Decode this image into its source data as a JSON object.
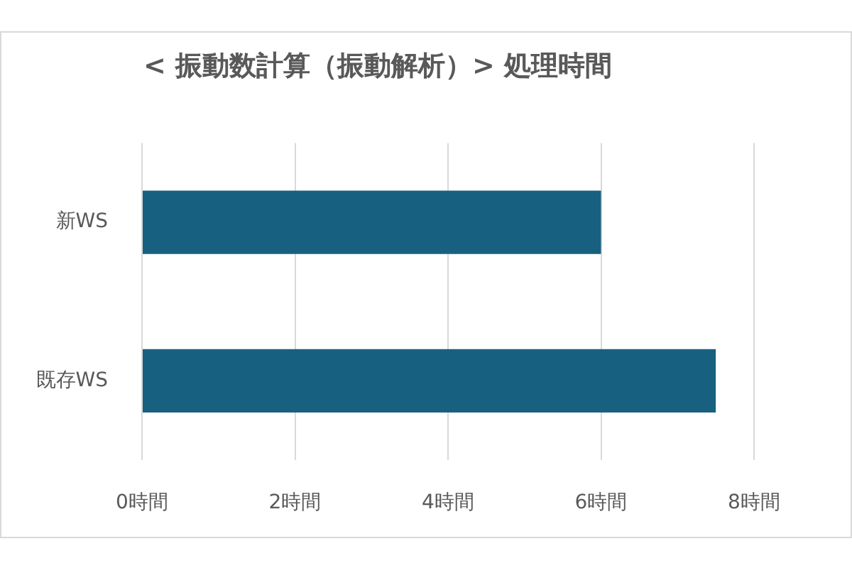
{
  "chart_data": {
    "type": "bar",
    "title": "< 振動数計算（振動解析）> 処理時間",
    "categories": [
      "新WS",
      "既存WS"
    ],
    "values": [
      6,
      7.5
    ],
    "color": "#17607f",
    "orientation": "horizontal",
    "xlim": [
      0,
      8
    ],
    "xticks": [
      {
        "value": 0,
        "label": "0時間"
      },
      {
        "value": 2,
        "label": "2時間"
      },
      {
        "value": 4,
        "label": "4時間"
      },
      {
        "value": 6,
        "label": "6時間"
      },
      {
        "value": 8,
        "label": "8時間"
      }
    ],
    "grid": "x"
  }
}
